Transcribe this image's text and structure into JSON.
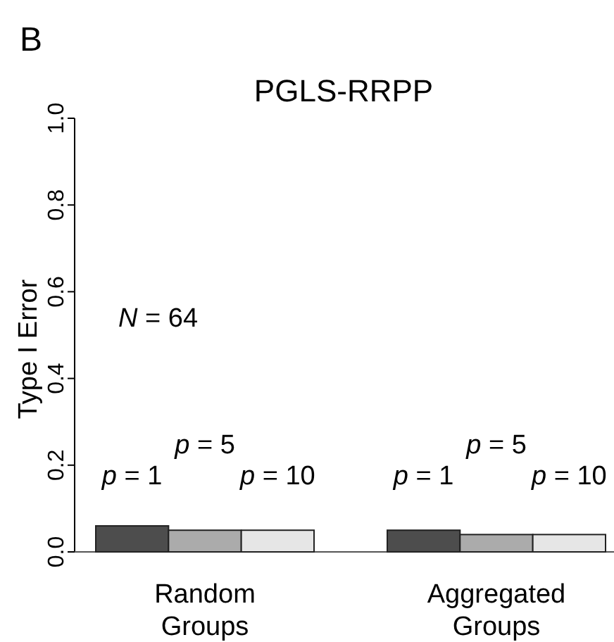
{
  "chart_data": {
    "type": "bar",
    "title": "PGLS-RRPP",
    "ylabel": "Type I Error",
    "categories": [
      "Random Groups",
      "Aggregated Groups"
    ],
    "series": [
      {
        "name": "p = 1",
        "color": "#4d4d4d",
        "values": [
          0.06,
          0.05
        ]
      },
      {
        "name": "p = 5",
        "color": "#ababab",
        "values": [
          0.05,
          0.04
        ]
      },
      {
        "name": "p = 10",
        "color": "#e6e6e6",
        "values": [
          0.05,
          0.04
        ]
      }
    ],
    "ylim": [
      0,
      1
    ],
    "yticks": [
      {
        "value": 0,
        "label": "0.0"
      },
      {
        "value": 0.2,
        "label": "0.2"
      },
      {
        "value": 0.4,
        "label": "0.4"
      },
      {
        "value": 0.6,
        "label": "0.6"
      },
      {
        "value": 0.8,
        "label": "0.8"
      },
      {
        "value": 1,
        "label": "1.0"
      }
    ],
    "annotations": [
      "B",
      "N = 64"
    ]
  }
}
